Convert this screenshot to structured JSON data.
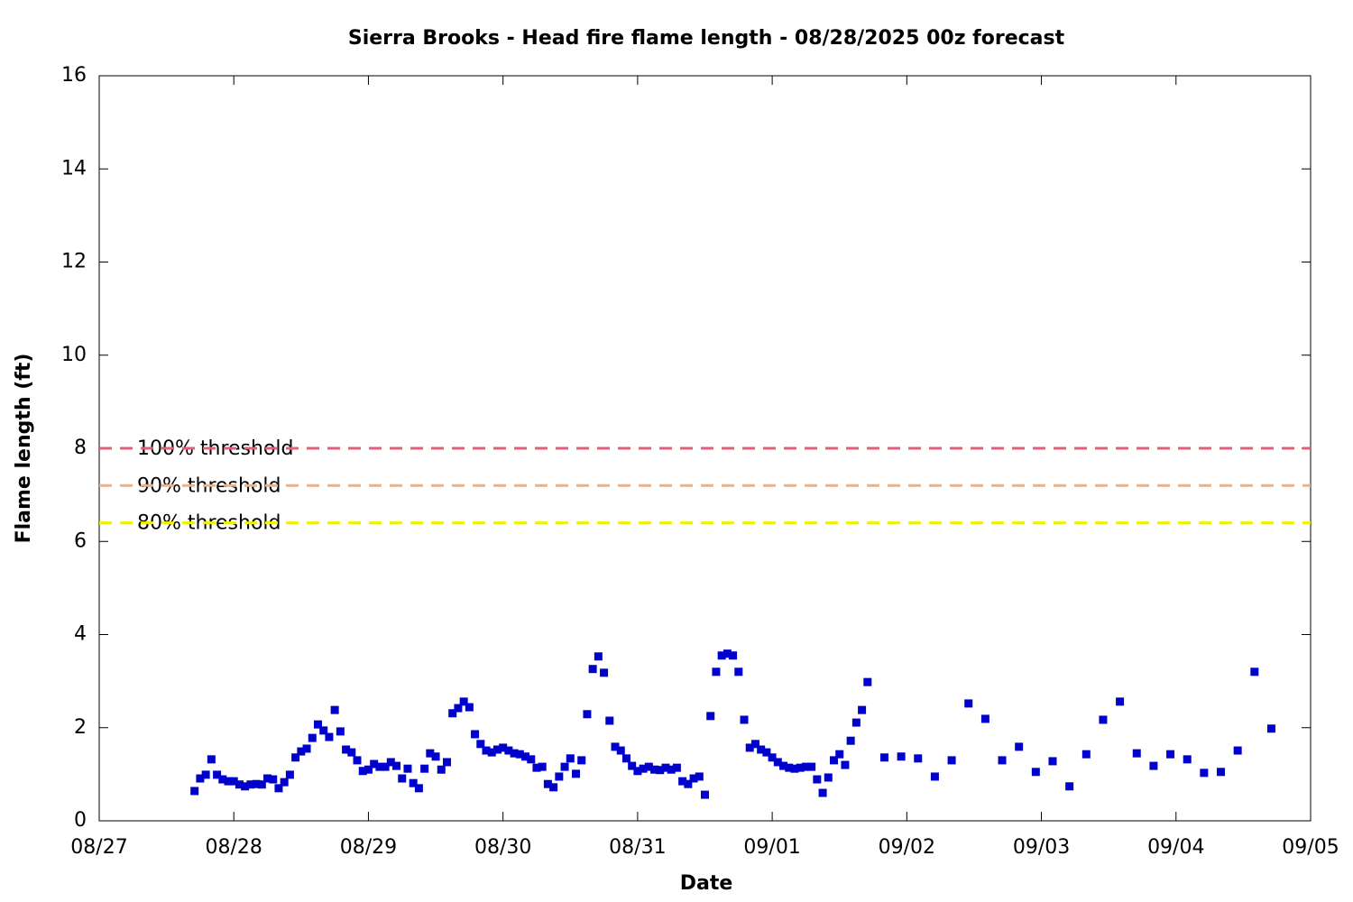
{
  "chart_data": {
    "type": "scatter",
    "title": "Sierra Brooks - Head fire flame length - 08/28/2025 00z forecast",
    "xlabel": "Date",
    "ylabel": "Flame length (ft)",
    "xlim": [
      0,
      216
    ],
    "xticks": [
      {
        "value": 0,
        "label": "08/27"
      },
      {
        "value": 24,
        "label": "08/28"
      },
      {
        "value": 48,
        "label": "08/29"
      },
      {
        "value": 72,
        "label": "08/30"
      },
      {
        "value": 96,
        "label": "08/31"
      },
      {
        "value": 120,
        "label": "09/01"
      },
      {
        "value": 144,
        "label": "09/02"
      },
      {
        "value": 168,
        "label": "09/03"
      },
      {
        "value": 192,
        "label": "09/04"
      },
      {
        "value": 216,
        "label": "09/05"
      }
    ],
    "ylim": [
      0,
      16
    ],
    "yticks": [
      0,
      2,
      4,
      6,
      8,
      10,
      12,
      14,
      16
    ],
    "thresholds": [
      {
        "name": "100% threshold",
        "value": 8,
        "color": "#e0607a"
      },
      {
        "name": "90% threshold",
        "value": 7.2,
        "color": "#f4b07c"
      },
      {
        "name": "80% threshold",
        "value": 6.4,
        "color": "#f0f000"
      }
    ],
    "color": "#0000cc",
    "x": [
      17,
      18,
      19,
      20,
      21,
      22,
      23,
      24,
      25,
      26,
      27,
      28,
      29,
      30,
      31,
      32,
      33,
      34,
      35,
      36,
      37,
      38,
      39,
      40,
      41,
      42,
      43,
      44,
      45,
      46,
      47,
      48,
      49,
      50,
      51,
      52,
      53,
      54,
      55,
      56,
      57,
      58,
      59,
      60,
      61,
      62,
      63,
      64,
      65,
      66,
      67,
      68,
      69,
      70,
      71,
      72,
      73,
      74,
      75,
      76,
      77,
      78,
      79,
      80,
      81,
      82,
      83,
      84,
      85,
      86,
      87,
      88,
      89,
      90,
      91,
      92,
      93,
      94,
      95,
      96,
      97,
      98,
      99,
      100,
      101,
      102,
      103,
      104,
      105,
      106,
      107,
      108,
      109,
      110,
      111,
      112,
      113,
      114,
      115,
      116,
      117,
      118,
      119,
      120,
      121,
      122,
      123,
      124,
      125,
      126,
      127,
      128,
      129,
      130,
      131,
      132,
      133,
      134,
      135,
      136,
      137,
      140,
      143,
      146,
      149,
      152,
      155,
      158,
      161,
      164,
      167,
      170,
      173,
      176,
      179,
      182,
      185,
      188,
      191,
      194,
      197,
      200,
      203,
      206,
      209
    ],
    "values": [
      0.64,
      0.91,
      0.99,
      1.32,
      0.99,
      0.89,
      0.85,
      0.85,
      0.78,
      0.74,
      0.78,
      0.79,
      0.78,
      0.91,
      0.89,
      0.7,
      0.83,
      0.99,
      1.36,
      1.49,
      1.55,
      1.78,
      2.07,
      1.94,
      1.8,
      2.38,
      1.92,
      1.53,
      1.47,
      1.3,
      1.07,
      1.1,
      1.22,
      1.16,
      1.16,
      1.26,
      1.18,
      0.91,
      1.12,
      0.81,
      0.7,
      1.12,
      1.45,
      1.38,
      1.1,
      1.26,
      2.31,
      2.42,
      2.56,
      2.44,
      1.86,
      1.65,
      1.51,
      1.47,
      1.53,
      1.57,
      1.51,
      1.45,
      1.43,
      1.38,
      1.32,
      1.14,
      1.16,
      0.79,
      0.72,
      0.95,
      1.16,
      1.34,
      1.01,
      1.3,
      2.29,
      3.26,
      3.53,
      3.18,
      2.15,
      1.59,
      1.51,
      1.34,
      1.18,
      1.07,
      1.12,
      1.16,
      1.1,
      1.09,
      1.14,
      1.1,
      1.14,
      0.85,
      0.79,
      0.91,
      0.95,
      0.56,
      2.25,
      3.2,
      3.55,
      3.59,
      3.55,
      3.2,
      2.17,
      1.57,
      1.65,
      1.53,
      1.47,
      1.36,
      1.26,
      1.18,
      1.14,
      1.12,
      1.14,
      1.16,
      1.16,
      0.89,
      0.6,
      0.93,
      1.3,
      1.43,
      1.2,
      1.72,
      2.11,
      2.38,
      2.98,
      1.36,
      1.38,
      1.34,
      0.95,
      1.3,
      2.52,
      2.19,
      1.3,
      1.59,
      1.05,
      1.28,
      0.74,
      1.43,
      2.17,
      2.56,
      1.45,
      1.18,
      1.43,
      1.32,
      1.03,
      1.05,
      1.51,
      3.2,
      1.98
    ]
  }
}
